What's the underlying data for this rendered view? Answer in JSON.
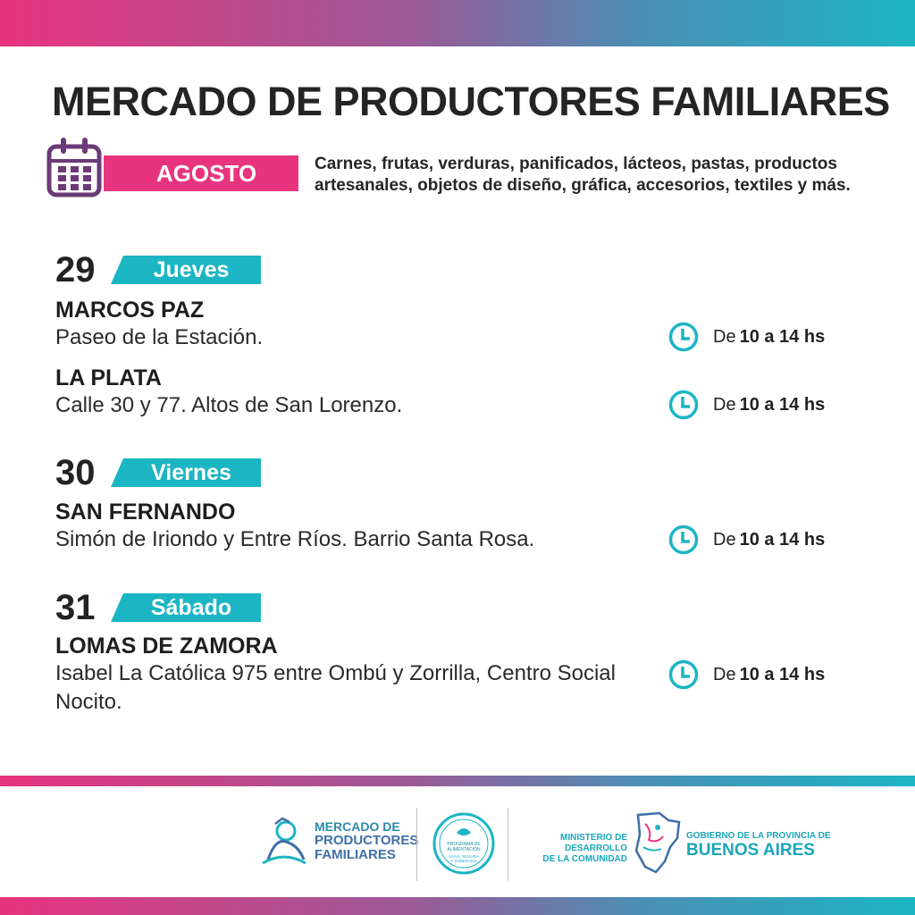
{
  "title": "MERCADO DE PRODUCTORES FAMILIARES",
  "month": "AGOSTO",
  "description": "Carnes, frutas, verduras, panificados, lácteos, pastas, productos artesanales, objetos de diseño, gráfica, accesorios, textiles y más.",
  "days": [
    {
      "number": "29",
      "weekday": "Jueves",
      "locations": [
        {
          "name": "MARCOS PAZ",
          "address": "Paseo de la Estación.",
          "time_prefix": "De",
          "time_range": "10 a 14 hs"
        },
        {
          "name": "LA PLATA",
          "address": "Calle 30 y 77. Altos de San Lorenzo.",
          "time_prefix": "De",
          "time_range": "10 a 14 hs"
        }
      ]
    },
    {
      "number": "30",
      "weekday": "Viernes",
      "locations": [
        {
          "name": "SAN FERNANDO",
          "address": "Simón de Iriondo y Entre Ríos. Barrio Santa Rosa.",
          "time_prefix": "De",
          "time_range": "10 a 14 hs"
        }
      ]
    },
    {
      "number": "31",
      "weekday": "Sábado",
      "locations": [
        {
          "name": "LOMAS DE ZAMORA",
          "address": "Isabel La Católica 975 entre Ombú y Zorrilla, Centro Social Nocito.",
          "time_prefix": "De",
          "time_range": "10 a 14 hs"
        }
      ]
    }
  ],
  "footer": {
    "mpf_line1": "MERCADO DE",
    "mpf_line2": "PRODUCTORES",
    "mpf_line3": "FAMILIARES",
    "programa": "PROGRAMA DE ALIMENTACIÓN SANA, SEGURA Y SOBERANA",
    "ministerio_line1": "MINISTERIO DE DESARROLLO",
    "ministerio_line2": "DE LA COMUNIDAD",
    "gobierno_line1": "GOBIERNO DE LA PROVINCIA DE",
    "gobierno_line2": "BUENOS AIRES"
  },
  "icons": {
    "calendar": "calendar-icon",
    "clock": "clock-icon"
  },
  "colors": {
    "pink": "#e8347e",
    "teal": "#1cb5c4",
    "purple": "#6b3a78"
  }
}
